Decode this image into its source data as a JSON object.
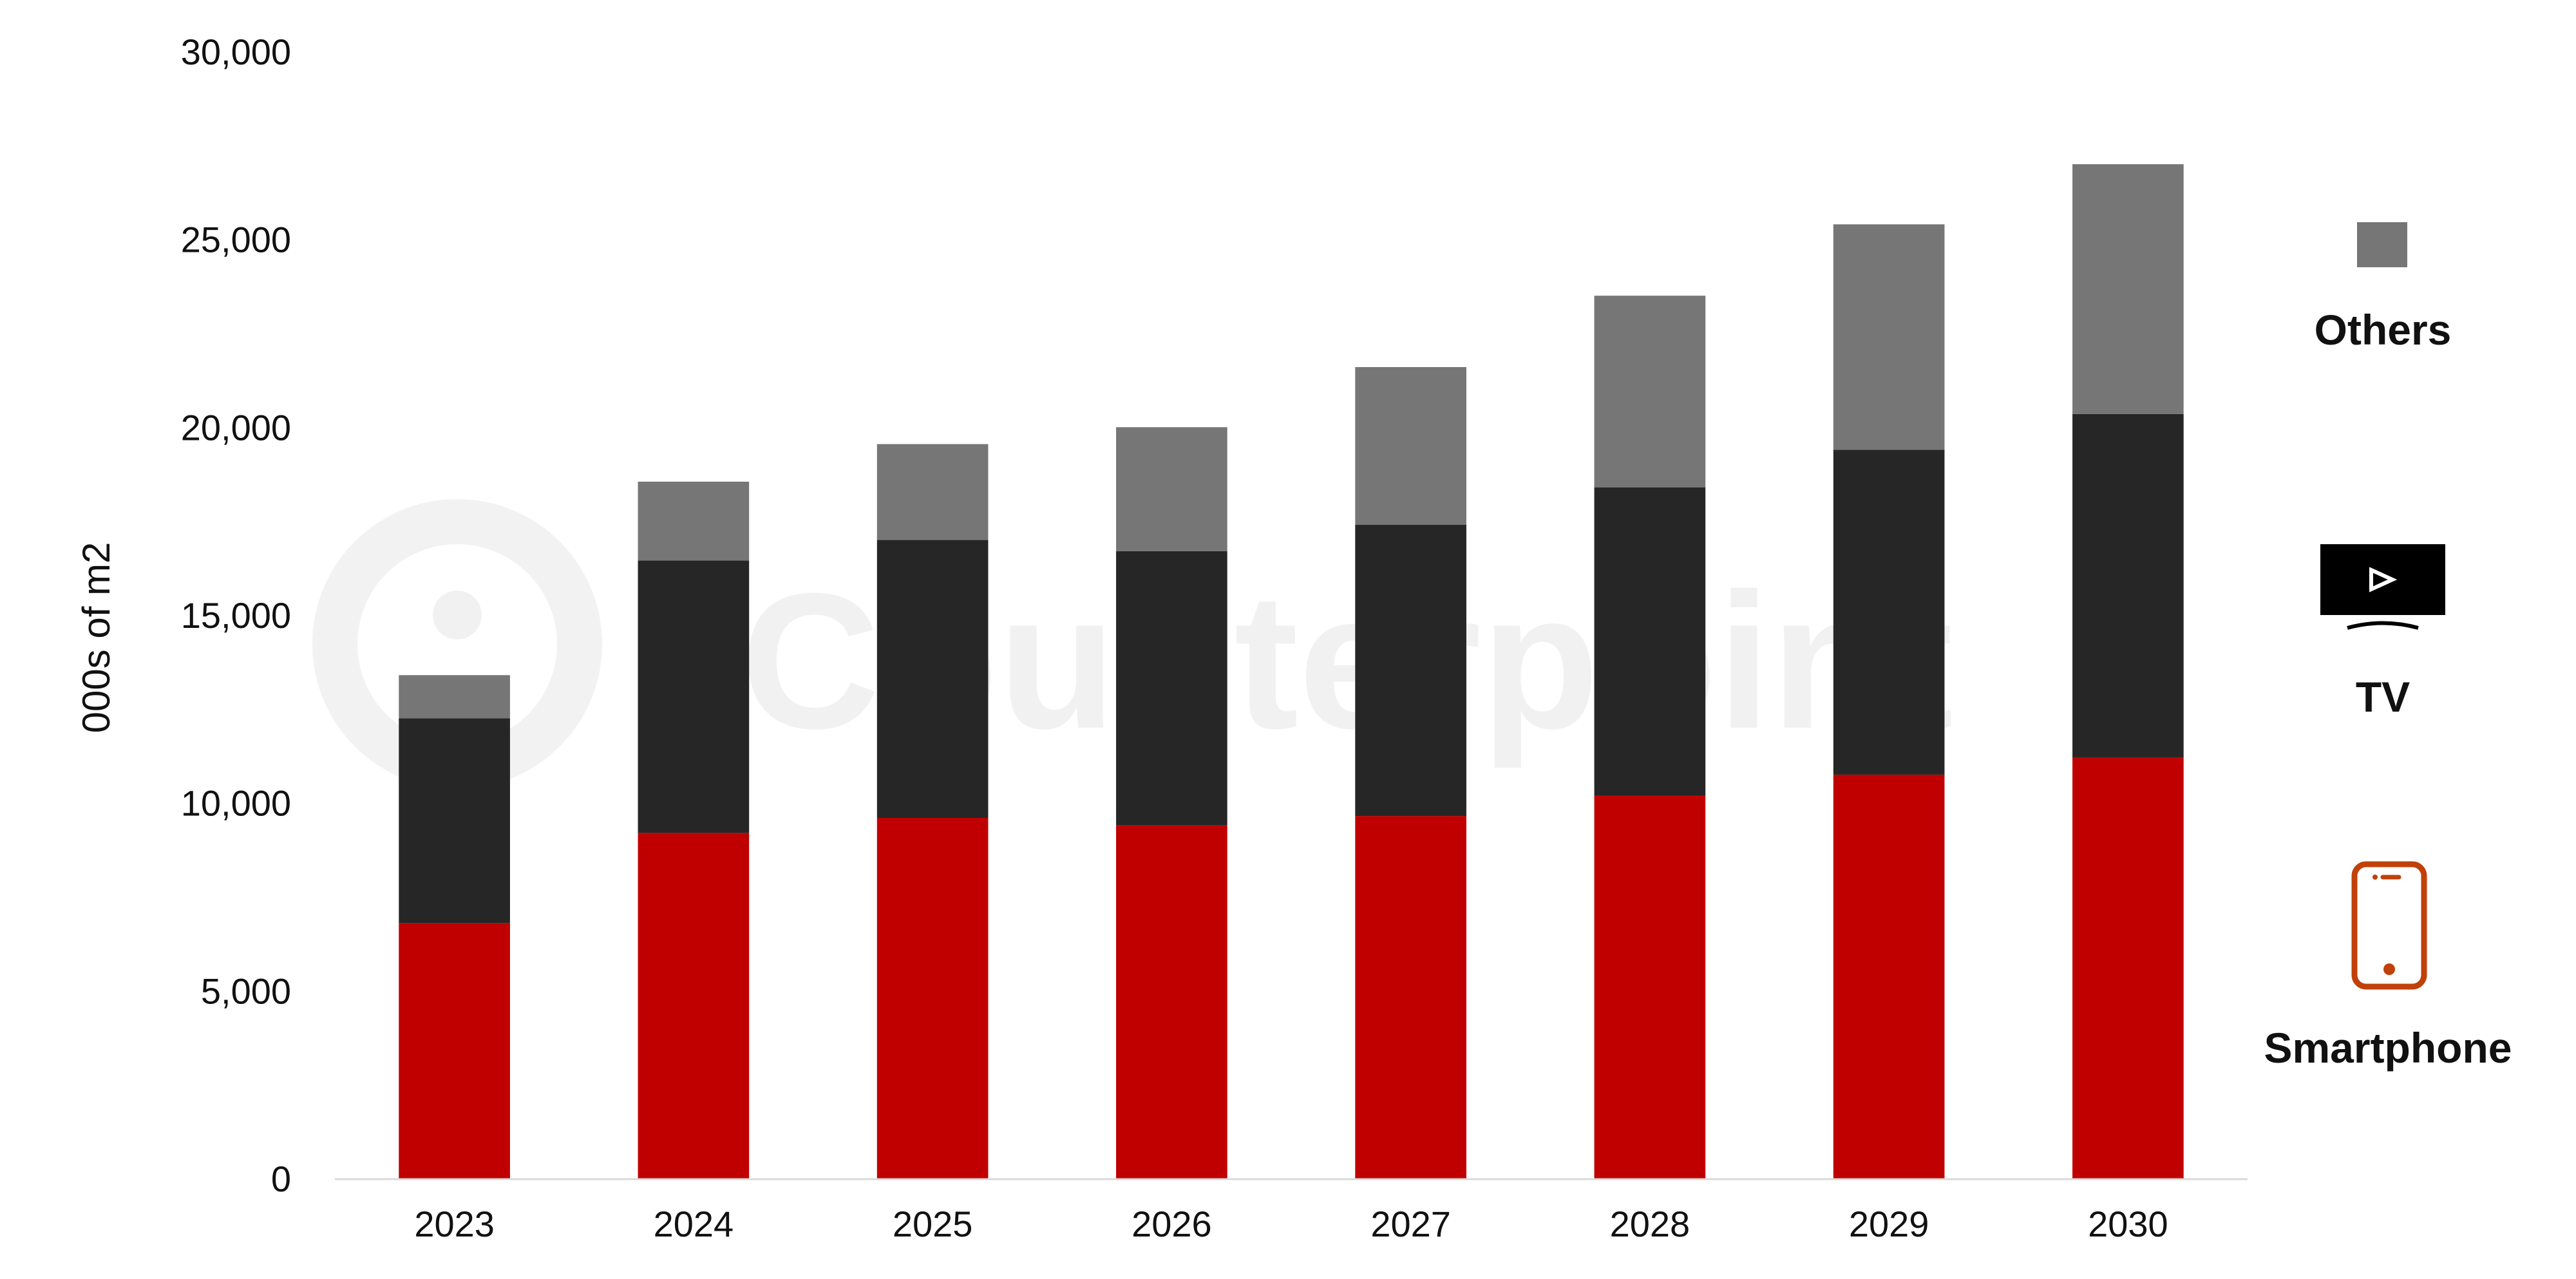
{
  "chart_data": {
    "type": "bar",
    "stacked": true,
    "categories": [
      "2023",
      "2024",
      "2025",
      "2026",
      "2027",
      "2028",
      "2029",
      "2030"
    ],
    "series": [
      {
        "name": "Smartphone",
        "values": [
          6800,
          9200,
          9600,
          9400,
          9650,
          10200,
          10750,
          11200
        ],
        "color": "#c00000",
        "icon": "smartphone-icon"
      },
      {
        "name": "TV",
        "values": [
          5450,
          7250,
          7400,
          7300,
          7750,
          8200,
          8650,
          9150
        ],
        "color": "#262626",
        "icon": "tv-icon"
      },
      {
        "name": "Others",
        "values": [
          1150,
          2100,
          2550,
          3300,
          4200,
          5100,
          6000,
          6650
        ],
        "color": "#767676",
        "icon": "grey-square-swatch"
      }
    ],
    "title": "",
    "xlabel": "",
    "ylabel": "000s of m2",
    "ylim": [
      0,
      30000
    ],
    "yticks": [
      0,
      5000,
      10000,
      15000,
      20000,
      25000,
      30000
    ],
    "ytick_labels": [
      "0",
      "5,000",
      "10,000",
      "15,000",
      "20,000",
      "25,000",
      "30,000"
    ],
    "grid": false,
    "legend_placement": "right",
    "watermark": "Counterpoint"
  }
}
